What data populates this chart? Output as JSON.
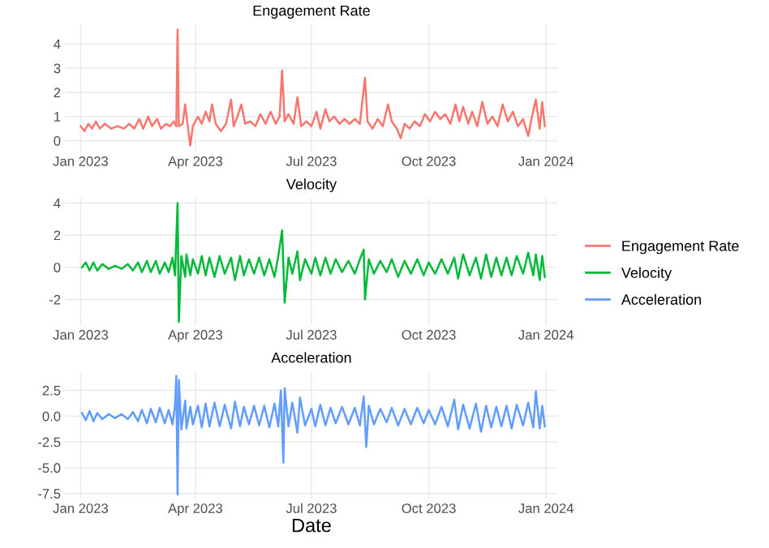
{
  "chart_data": [
    {
      "type": "line",
      "title": "Engagement Rate",
      "xlim": [
        "2022-12-20",
        "2024-01-10"
      ],
      "xticks": [
        {
          "value": "2023-01-01",
          "label": "Jan 2023"
        },
        {
          "value": "2023-04-01",
          "label": "Apr 2023"
        },
        {
          "value": "2023-07-01",
          "label": "Jul 2023"
        },
        {
          "value": "2023-10-01",
          "label": "Oct 2023"
        },
        {
          "value": "2024-01-01",
          "label": "Jan 2024"
        }
      ],
      "ylim": [
        -0.45,
        4.8
      ],
      "yticks": [
        0,
        1,
        2,
        3,
        4
      ],
      "grid": true,
      "legend": "right",
      "x": [
        "2023-01-01",
        "2023-01-04",
        "2023-01-07",
        "2023-01-10",
        "2023-01-13",
        "2023-01-16",
        "2023-01-20",
        "2023-01-25",
        "2023-01-30",
        "2023-02-04",
        "2023-02-08",
        "2023-02-12",
        "2023-02-16",
        "2023-02-19",
        "2023-02-23",
        "2023-02-26",
        "2023-03-02",
        "2023-03-05",
        "2023-03-09",
        "2023-03-12",
        "2023-03-15",
        "2023-03-17",
        "2023-03-18",
        "2023-03-19",
        "2023-03-22",
        "2023-03-24",
        "2023-03-26",
        "2023-03-28",
        "2023-03-30",
        "2023-04-03",
        "2023-04-06",
        "2023-04-09",
        "2023-04-12",
        "2023-04-14",
        "2023-04-17",
        "2023-04-21",
        "2023-04-25",
        "2023-04-29",
        "2023-05-01",
        "2023-05-04",
        "2023-05-07",
        "2023-05-10",
        "2023-05-14",
        "2023-05-18",
        "2023-05-22",
        "2023-05-26",
        "2023-05-30",
        "2023-06-03",
        "2023-06-06",
        "2023-06-08",
        "2023-06-10",
        "2023-06-13",
        "2023-06-17",
        "2023-06-20",
        "2023-06-23",
        "2023-06-27",
        "2023-07-01",
        "2023-07-05",
        "2023-07-08",
        "2023-07-12",
        "2023-07-15",
        "2023-07-19",
        "2023-07-23",
        "2023-07-27",
        "2023-07-31",
        "2023-08-04",
        "2023-08-08",
        "2023-08-12",
        "2023-08-14",
        "2023-08-18",
        "2023-08-22",
        "2023-08-26",
        "2023-08-30",
        "2023-09-02",
        "2023-09-06",
        "2023-09-09",
        "2023-09-12",
        "2023-09-16",
        "2023-09-20",
        "2023-09-24",
        "2023-09-28",
        "2023-10-02",
        "2023-10-06",
        "2023-10-10",
        "2023-10-14",
        "2023-10-18",
        "2023-10-22",
        "2023-10-25",
        "2023-10-28",
        "2023-11-01",
        "2023-11-04",
        "2023-11-08",
        "2023-11-12",
        "2023-11-16",
        "2023-11-20",
        "2023-11-24",
        "2023-11-28",
        "2023-12-02",
        "2023-12-06",
        "2023-12-10",
        "2023-12-14",
        "2023-12-18",
        "2023-12-21",
        "2023-12-24",
        "2023-12-27",
        "2023-12-29",
        "2023-12-31"
      ],
      "series": [
        {
          "name": "Engagement Rate",
          "color": "#f8766d",
          "values": [
            0.6,
            0.4,
            0.7,
            0.5,
            0.8,
            0.5,
            0.7,
            0.5,
            0.6,
            0.5,
            0.7,
            0.5,
            0.9,
            0.5,
            1.0,
            0.6,
            0.9,
            0.5,
            0.7,
            0.6,
            0.8,
            0.6,
            4.6,
            0.6,
            0.7,
            1.5,
            0.6,
            -0.2,
            0.6,
            1.0,
            0.7,
            1.2,
            0.8,
            1.5,
            0.7,
            0.4,
            0.7,
            1.7,
            0.6,
            1.0,
            1.5,
            0.7,
            0.8,
            0.6,
            1.1,
            0.7,
            1.2,
            0.7,
            1.0,
            2.9,
            0.8,
            1.1,
            0.7,
            1.8,
            0.6,
            0.8,
            0.6,
            1.2,
            0.5,
            1.3,
            0.8,
            1.0,
            0.7,
            0.9,
            0.7,
            0.9,
            0.7,
            2.6,
            0.8,
            0.5,
            0.9,
            0.6,
            1.5,
            0.8,
            0.5,
            0.1,
            0.7,
            0.5,
            0.8,
            0.6,
            1.1,
            0.8,
            1.2,
            0.9,
            1.1,
            0.7,
            1.5,
            0.8,
            1.4,
            0.7,
            1.2,
            0.6,
            1.6,
            0.7,
            1.0,
            0.6,
            1.5,
            0.8,
            1.2,
            0.6,
            0.9,
            0.2,
            1.0,
            1.7,
            0.5,
            1.6,
            0.6
          ]
        }
      ]
    },
    {
      "type": "line",
      "title": "Velocity",
      "xlim": [
        "2022-12-20",
        "2024-01-10"
      ],
      "xticks": [
        {
          "value": "2023-01-01",
          "label": "Jan 2023"
        },
        {
          "value": "2023-04-01",
          "label": "Apr 2023"
        },
        {
          "value": "2023-07-01",
          "label": "Jul 2023"
        },
        {
          "value": "2023-10-01",
          "label": "Oct 2023"
        },
        {
          "value": "2024-01-01",
          "label": "Jan 2024"
        }
      ],
      "ylim": [
        -3.6,
        4.3
      ],
      "yticks": [
        -2,
        0,
        2,
        4
      ],
      "grid": true,
      "legend": "right",
      "x": [
        "2023-01-02",
        "2023-01-05",
        "2023-01-08",
        "2023-01-11",
        "2023-01-14",
        "2023-01-18",
        "2023-01-23",
        "2023-01-28",
        "2023-02-02",
        "2023-02-07",
        "2023-02-11",
        "2023-02-15",
        "2023-02-18",
        "2023-02-22",
        "2023-02-25",
        "2023-03-01",
        "2023-03-04",
        "2023-03-08",
        "2023-03-11",
        "2023-03-14",
        "2023-03-16",
        "2023-03-18",
        "2023-03-19",
        "2023-03-21",
        "2023-03-24",
        "2023-03-25",
        "2023-03-28",
        "2023-03-30",
        "2023-04-03",
        "2023-04-06",
        "2023-04-09",
        "2023-04-12",
        "2023-04-16",
        "2023-04-20",
        "2023-04-24",
        "2023-04-29",
        "2023-05-02",
        "2023-05-06",
        "2023-05-09",
        "2023-05-13",
        "2023-05-17",
        "2023-05-21",
        "2023-05-25",
        "2023-05-29",
        "2023-06-02",
        "2023-06-05",
        "2023-06-08",
        "2023-06-10",
        "2023-06-13",
        "2023-06-16",
        "2023-06-20",
        "2023-06-22",
        "2023-06-26",
        "2023-07-01",
        "2023-07-04",
        "2023-07-08",
        "2023-07-12",
        "2023-07-16",
        "2023-07-20",
        "2023-07-25",
        "2023-07-30",
        "2023-08-04",
        "2023-08-08",
        "2023-08-11",
        "2023-08-12",
        "2023-08-15",
        "2023-08-19",
        "2023-08-24",
        "2023-08-29",
        "2023-09-02",
        "2023-09-07",
        "2023-09-12",
        "2023-09-17",
        "2023-09-22",
        "2023-09-27",
        "2023-10-01",
        "2023-10-06",
        "2023-10-11",
        "2023-10-16",
        "2023-10-21",
        "2023-10-24",
        "2023-10-28",
        "2023-11-02",
        "2023-11-07",
        "2023-11-11",
        "2023-11-15",
        "2023-11-19",
        "2023-11-23",
        "2023-11-27",
        "2023-12-01",
        "2023-12-05",
        "2023-12-09",
        "2023-12-14",
        "2023-12-18",
        "2023-12-22",
        "2023-12-24",
        "2023-12-27",
        "2023-12-29",
        "2023-12-31"
      ],
      "series": [
        {
          "name": "Velocity",
          "color": "#00ba38",
          "values": [
            0.0,
            0.3,
            -0.2,
            0.3,
            -0.2,
            0.2,
            -0.1,
            0.1,
            -0.1,
            0.2,
            -0.2,
            0.3,
            -0.3,
            0.4,
            -0.3,
            0.4,
            -0.4,
            0.3,
            -0.3,
            0.6,
            -0.5,
            4.0,
            -3.4,
            0.7,
            -0.6,
            0.8,
            -0.5,
            0.5,
            -0.4,
            0.7,
            -0.5,
            0.6,
            -0.6,
            0.7,
            -0.4,
            0.6,
            -0.8,
            0.7,
            -0.5,
            0.5,
            -0.4,
            0.6,
            -0.5,
            0.5,
            -0.6,
            0.7,
            2.3,
            -2.2,
            0.6,
            -0.4,
            1.0,
            -0.8,
            0.5,
            -0.4,
            0.6,
            -0.5,
            0.6,
            -0.4,
            0.5,
            -0.3,
            0.4,
            -0.4,
            0.5,
            1.1,
            -2.0,
            0.5,
            -0.4,
            0.4,
            -0.3,
            0.5,
            -0.6,
            0.4,
            -0.4,
            0.5,
            -0.5,
            0.3,
            -0.4,
            0.5,
            -0.4,
            0.6,
            -0.7,
            0.8,
            -0.5,
            0.6,
            -0.7,
            0.8,
            -0.6,
            0.6,
            -0.5,
            0.6,
            -0.5,
            0.7,
            -0.4,
            0.9,
            -0.5,
            0.8,
            -0.8,
            0.7,
            -0.6
          ]
        }
      ]
    },
    {
      "type": "line",
      "title": "Acceleration",
      "xlabel": "Date",
      "xlim": [
        "2022-12-20",
        "2024-01-10"
      ],
      "xticks": [
        {
          "value": "2023-01-01",
          "label": "Jan 2023"
        },
        {
          "value": "2023-04-01",
          "label": "Apr 2023"
        },
        {
          "value": "2023-07-01",
          "label": "Jul 2023"
        },
        {
          "value": "2023-10-01",
          "label": "Oct 2023"
        },
        {
          "value": "2024-01-01",
          "label": "Jan 2024"
        }
      ],
      "ylim": [
        -8.0,
        4.3
      ],
      "yticks": [
        {
          "value": -7.5,
          "label": "-7.5"
        },
        {
          "value": -5,
          "label": "-5.0"
        },
        {
          "value": -2.5,
          "label": "-2.5"
        },
        {
          "value": 0,
          "label": "0.0"
        },
        {
          "value": 2.5,
          "label": "2.5"
        }
      ],
      "grid": true,
      "legend": "right",
      "x": [
        "2023-01-02",
        "2023-01-05",
        "2023-01-08",
        "2023-01-11",
        "2023-01-14",
        "2023-01-18",
        "2023-01-23",
        "2023-01-28",
        "2023-02-02",
        "2023-02-07",
        "2023-02-11",
        "2023-02-15",
        "2023-02-18",
        "2023-02-22",
        "2023-02-25",
        "2023-03-01",
        "2023-03-04",
        "2023-03-08",
        "2023-03-11",
        "2023-03-14",
        "2023-03-16",
        "2023-03-17",
        "2023-03-18",
        "2023-03-19",
        "2023-03-21",
        "2023-03-24",
        "2023-03-25",
        "2023-03-28",
        "2023-03-30",
        "2023-04-03",
        "2023-04-06",
        "2023-04-09",
        "2023-04-12",
        "2023-04-16",
        "2023-04-20",
        "2023-04-24",
        "2023-04-29",
        "2023-05-02",
        "2023-05-06",
        "2023-05-09",
        "2023-05-13",
        "2023-05-17",
        "2023-05-21",
        "2023-05-25",
        "2023-05-29",
        "2023-06-02",
        "2023-06-05",
        "2023-06-07",
        "2023-06-09",
        "2023-06-10",
        "2023-06-13",
        "2023-06-16",
        "2023-06-20",
        "2023-06-22",
        "2023-06-26",
        "2023-07-01",
        "2023-07-04",
        "2023-07-08",
        "2023-07-12",
        "2023-07-16",
        "2023-07-20",
        "2023-07-25",
        "2023-07-30",
        "2023-08-04",
        "2023-08-08",
        "2023-08-11",
        "2023-08-13",
        "2023-08-15",
        "2023-08-19",
        "2023-08-24",
        "2023-08-29",
        "2023-09-02",
        "2023-09-07",
        "2023-09-12",
        "2023-09-17",
        "2023-09-22",
        "2023-09-27",
        "2023-10-01",
        "2023-10-06",
        "2023-10-11",
        "2023-10-16",
        "2023-10-21",
        "2023-10-24",
        "2023-10-28",
        "2023-11-02",
        "2023-11-07",
        "2023-11-11",
        "2023-11-15",
        "2023-11-19",
        "2023-11-23",
        "2023-11-27",
        "2023-12-01",
        "2023-12-05",
        "2023-12-09",
        "2023-12-14",
        "2023-12-18",
        "2023-12-22",
        "2023-12-24",
        "2023-12-27",
        "2023-12-29",
        "2023-12-31"
      ],
      "series": [
        {
          "name": "Acceleration",
          "color": "#619cff",
          "values": [
            0.3,
            -0.4,
            0.5,
            -0.5,
            0.3,
            -0.3,
            0.2,
            -0.2,
            0.2,
            -0.3,
            0.4,
            -0.5,
            0.6,
            -0.7,
            0.7,
            -0.6,
            0.8,
            -0.7,
            0.6,
            -0.8,
            1.0,
            3.9,
            -7.6,
            3.5,
            -1.3,
            1.5,
            -1.2,
            0.9,
            -0.8,
            1.0,
            -1.1,
            1.2,
            -1.0,
            1.3,
            -1.0,
            1.1,
            -1.2,
            1.4,
            -1.0,
            0.9,
            -0.8,
            1.0,
            -0.9,
            1.0,
            -1.1,
            1.2,
            -1.0,
            2.5,
            -4.5,
            2.7,
            -1.0,
            1.3,
            -1.6,
            1.8,
            -0.9,
            0.7,
            -1.0,
            1.1,
            -0.9,
            0.8,
            -0.7,
            0.9,
            -0.8,
            0.8,
            -0.9,
            1.9,
            -3.0,
            1.0,
            -0.8,
            0.7,
            -0.6,
            0.8,
            -0.9,
            0.7,
            -0.8,
            0.8,
            -0.7,
            0.6,
            -0.8,
            0.9,
            -1.0,
            1.6,
            -1.3,
            1.1,
            -1.2,
            1.2,
            -1.5,
            1.0,
            -1.1,
            0.9,
            -1.0,
            1.0,
            -1.2,
            1.1,
            -0.9,
            1.3,
            -1.1,
            2.4,
            -1.2,
            1.0,
            -1.0
          ]
        }
      ]
    }
  ]
}
